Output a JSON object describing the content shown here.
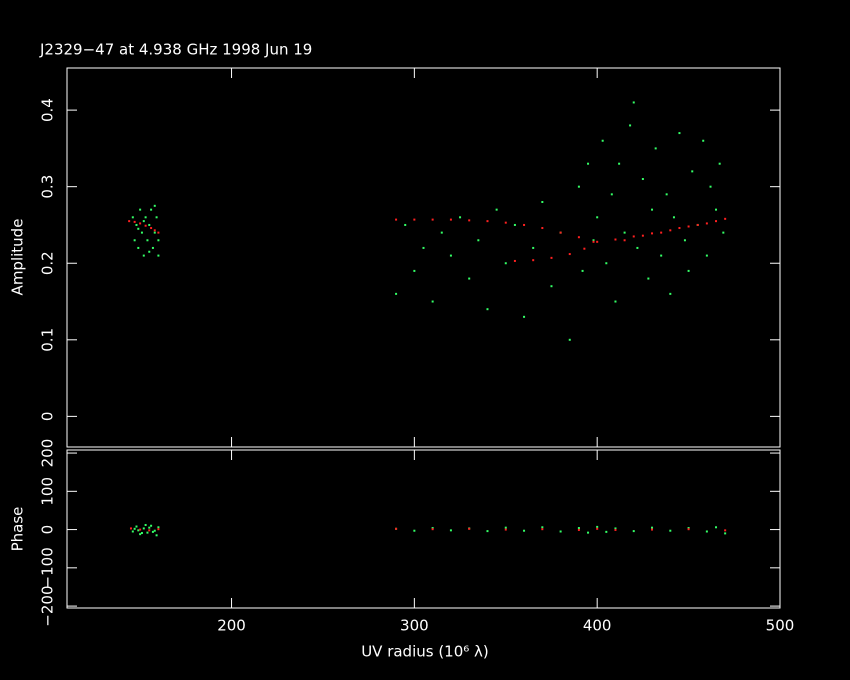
{
  "chart_data": [
    {
      "type": "scatter",
      "title": "J2329−47 at 4.938 GHz 1998 Jun 19",
      "ylabel": "Amplitude",
      "xlim": [
        110,
        500
      ],
      "ylim": [
        -0.04,
        0.455
      ],
      "xticks": [
        200,
        300,
        400,
        500
      ],
      "yticks": [
        0,
        0.1,
        0.2,
        0.3,
        0.4
      ],
      "series": [
        {
          "color": "#33ff66",
          "x": [
            146,
            147,
            148,
            149,
            150,
            151,
            152,
            153,
            154,
            155,
            156,
            157,
            158,
            159,
            160,
            160,
            158,
            155,
            152,
            149,
            290,
            295,
            300,
            305,
            310,
            315,
            320,
            325,
            330,
            335,
            340,
            345,
            350,
            355,
            360,
            365,
            370,
            375,
            380,
            385,
            390,
            392,
            395,
            398,
            400,
            403,
            405,
            408,
            410,
            412,
            415,
            418,
            420,
            422,
            425,
            428,
            430,
            432,
            435,
            438,
            440,
            442,
            445,
            448,
            450,
            452,
            455,
            458,
            460,
            462,
            465,
            467,
            469
          ],
          "values": [
            0.26,
            0.23,
            0.25,
            0.22,
            0.27,
            0.24,
            0.21,
            0.26,
            0.23,
            0.25,
            0.27,
            0.22,
            0.24,
            0.26,
            0.23,
            0.21,
            0.275,
            0.215,
            0.255,
            0.245,
            0.16,
            0.25,
            0.19,
            0.22,
            0.15,
            0.24,
            0.21,
            0.26,
            0.18,
            0.23,
            0.14,
            0.27,
            0.2,
            0.25,
            0.13,
            0.22,
            0.28,
            0.17,
            0.24,
            0.1,
            0.3,
            0.19,
            0.33,
            0.23,
            0.26,
            0.36,
            0.2,
            0.29,
            0.15,
            0.33,
            0.24,
            0.38,
            0.41,
            0.22,
            0.31,
            0.18,
            0.27,
            0.35,
            0.21,
            0.29,
            0.16,
            0.26,
            0.37,
            0.23,
            0.19,
            0.32,
            0.25,
            0.36,
            0.21,
            0.3,
            0.27,
            0.33,
            0.24
          ]
        },
        {
          "color": "#ff2020",
          "x": [
            144,
            147,
            150,
            153,
            156,
            158,
            160,
            290,
            300,
            310,
            320,
            330,
            340,
            350,
            360,
            370,
            380,
            390,
            398,
            355,
            365,
            375,
            385,
            393,
            400,
            410,
            420,
            430,
            440,
            450,
            460,
            470,
            415,
            425,
            435,
            445,
            455,
            465
          ],
          "values": [
            0.255,
            0.254,
            0.252,
            0.249,
            0.246,
            0.243,
            0.24,
            0.257,
            0.257,
            0.257,
            0.257,
            0.256,
            0.255,
            0.253,
            0.25,
            0.246,
            0.24,
            0.234,
            0.228,
            0.203,
            0.204,
            0.207,
            0.212,
            0.219,
            0.228,
            0.231,
            0.235,
            0.239,
            0.243,
            0.248,
            0.252,
            0.258,
            0.23,
            0.236,
            0.24,
            0.246,
            0.25,
            0.255
          ]
        }
      ]
    },
    {
      "type": "scatter",
      "ylabel": "Phase",
      "xlabel": "UV radius  (10⁶ λ)",
      "xlim": [
        110,
        500
      ],
      "ylim": [
        -205,
        208
      ],
      "xticks": [
        200,
        300,
        400,
        500
      ],
      "yticks": [
        {
          "value": -200,
          "label": "−200"
        },
        {
          "value": -100,
          "label": "−100"
        },
        0,
        100,
        200
      ],
      "series": [
        {
          "color": "#33ff66",
          "x": [
            146,
            148,
            150,
            152,
            154,
            156,
            158,
            160,
            159,
            147,
            151,
            155,
            157,
            153,
            149,
            290,
            300,
            310,
            320,
            330,
            340,
            350,
            360,
            370,
            380,
            390,
            395,
            400,
            405,
            410,
            420,
            430,
            440,
            450,
            460,
            465,
            470
          ],
          "values": [
            -5,
            8,
            -12,
            3,
            -8,
            10,
            -3,
            6,
            -15,
            2,
            -9,
            5,
            -6,
            12,
            -2,
            2,
            -3,
            4,
            -2,
            3,
            -4,
            5,
            -3,
            6,
            -5,
            4,
            -8,
            7,
            -6,
            3,
            -4,
            5,
            -3,
            4,
            -5,
            6,
            -10
          ]
        },
        {
          "color": "#ff2020",
          "x": [
            145,
            150,
            155,
            160,
            290,
            310,
            330,
            350,
            370,
            390,
            400,
            410,
            430,
            450,
            470
          ],
          "values": [
            3,
            0,
            -2,
            1,
            2,
            1,
            2,
            0,
            1,
            -1,
            2,
            -1,
            0,
            1,
            -2
          ]
        }
      ]
    }
  ]
}
